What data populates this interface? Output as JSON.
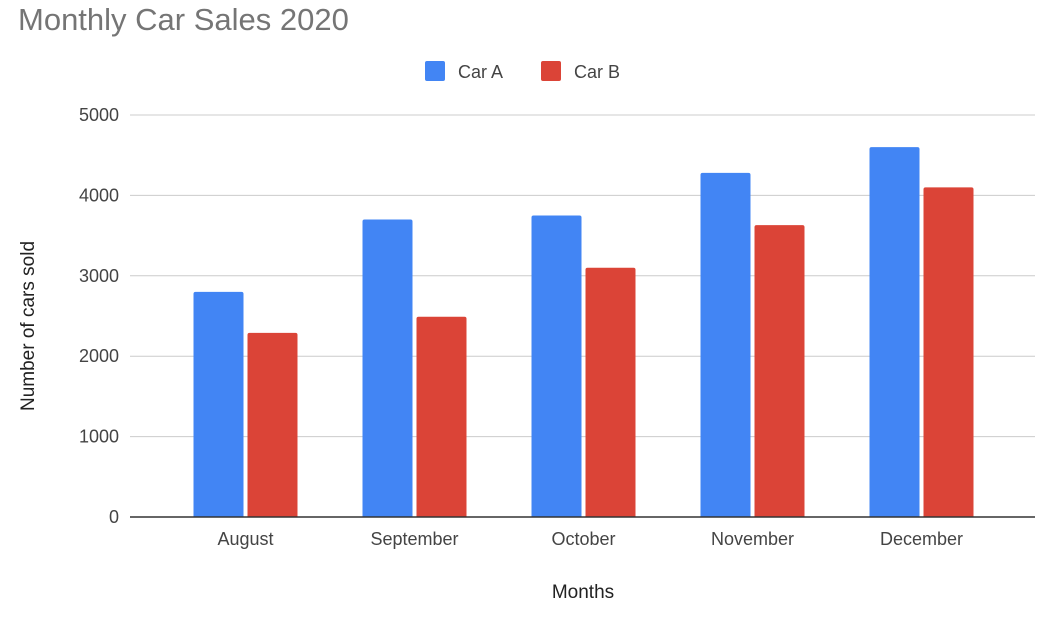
{
  "chart_data": {
    "type": "bar",
    "title": "Monthly Car Sales 2020",
    "xlabel": "Months",
    "ylabel": "Number of cars sold",
    "categories": [
      "August",
      "September",
      "October",
      "November",
      "December"
    ],
    "series": [
      {
        "name": "Car A",
        "color": "#4285f4",
        "values": [
          2800,
          3700,
          3750,
          4280,
          4600
        ]
      },
      {
        "name": "Car B",
        "color": "#db4437",
        "values": [
          2290,
          2490,
          3100,
          3630,
          4100
        ]
      }
    ],
    "ylim": [
      0,
      5000
    ],
    "yticks": [
      "0",
      "1000",
      "2000",
      "3000",
      "4000",
      "5000"
    ],
    "grid": true,
    "legend_position": "top-center"
  }
}
